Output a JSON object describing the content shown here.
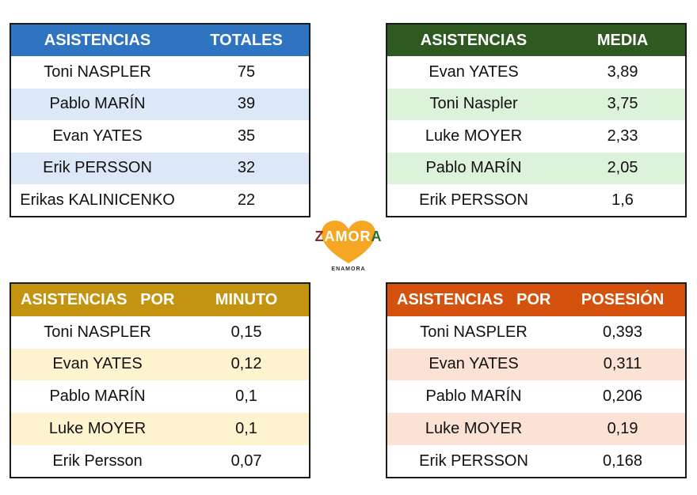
{
  "tables": [
    {
      "header": [
        "ASISTENCIAS",
        "TOTALES"
      ],
      "rows": [
        [
          "Toni NASPLER",
          "75"
        ],
        [
          "Pablo MARÍN",
          "39"
        ],
        [
          "Evan YATES",
          "35"
        ],
        [
          "Erik PERSSON",
          "32"
        ],
        [
          "Erikas KALINICENKO",
          "22"
        ]
      ]
    },
    {
      "header": [
        "ASISTENCIAS",
        "MEDIA"
      ],
      "rows": [
        [
          "Evan YATES",
          "3,89"
        ],
        [
          "Toni Naspler",
          "3,75"
        ],
        [
          "Luke MOYER",
          "2,33"
        ],
        [
          "Pablo MARÍN",
          "2,05"
        ],
        [
          "Erik PERSSON",
          "1,6"
        ]
      ]
    },
    {
      "header": [
        "ASISTENCIAS   POR",
        "MINUTO"
      ],
      "rows": [
        [
          "Toni NASPLER",
          "0,15"
        ],
        [
          "Evan YATES",
          "0,12"
        ],
        [
          "Pablo MARÍN",
          "0,1"
        ],
        [
          "Luke MOYER",
          "0,1"
        ],
        [
          "Erik Persson",
          "0,07"
        ]
      ]
    },
    {
      "header": [
        "ASISTENCIAS   POR",
        "POSESIÓN"
      ],
      "rows": [
        [
          "Toni NASPLER",
          "0,393"
        ],
        [
          "Evan YATES",
          "0,311"
        ],
        [
          "Pablo MARÍN",
          "0,206"
        ],
        [
          "Luke MOYER",
          "0,19"
        ],
        [
          "Erik PERSSON",
          "0,168"
        ]
      ]
    }
  ],
  "logo": {
    "text_z": "Z",
    "text_mid": "AMOR",
    "text_a": "A",
    "subtitle": "ENAMORA",
    "colors": {
      "heart": "#f5a623",
      "z": "#8b2c1f",
      "mid": "#ffffff",
      "a": "#2e6b2e"
    }
  }
}
